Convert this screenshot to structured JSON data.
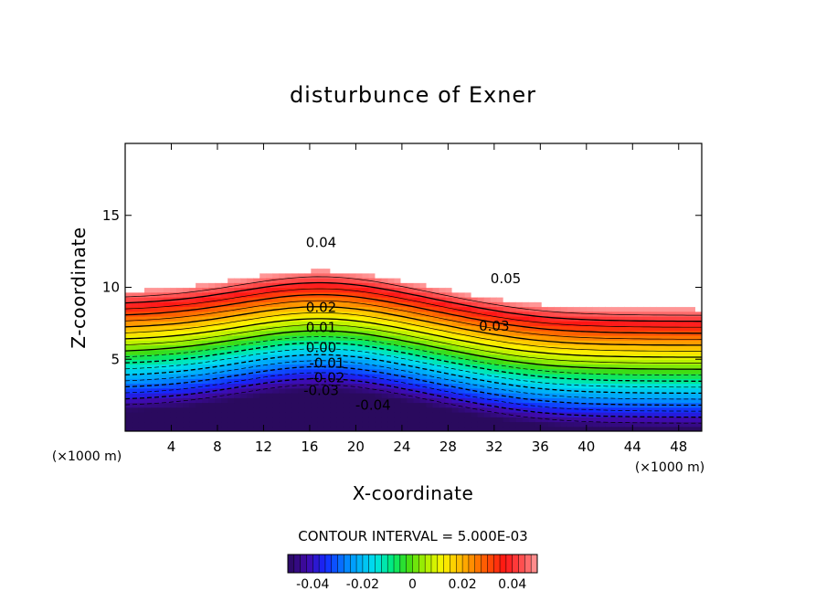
{
  "chart_data": {
    "type": "contour",
    "title": "disturbunce of Exner",
    "xlabel": "X-coordinate",
    "ylabel": "Z-coordinate",
    "x_unit": "(×1000 m)",
    "xlim": [
      0,
      50
    ],
    "ylim": [
      0,
      20
    ],
    "xticks": [
      4,
      8,
      12,
      16,
      20,
      24,
      28,
      32,
      36,
      40,
      44,
      48
    ],
    "yticks": [
      5,
      10,
      15
    ],
    "contour_interval_text": "CONTOUR INTERVAL = 5.000E-03",
    "contour_interval": 0.005,
    "field_range": [
      -0.05,
      0.05
    ],
    "negative_contours": "dashed",
    "contour_labels": [
      {
        "text": "0.04",
        "x": 17,
        "z": 12.8
      },
      {
        "text": "0.05",
        "x": 33,
        "z": 10.3
      },
      {
        "text": "0.02",
        "x": 17,
        "z": 8.3
      },
      {
        "text": "0.03",
        "x": 32,
        "z": 7.0
      },
      {
        "text": "0.01",
        "x": 17,
        "z": 6.9
      },
      {
        "text": "0.00",
        "x": 17,
        "z": 5.5
      },
      {
        "text": "-0.01",
        "x": 17.5,
        "z": 4.4
      },
      {
        "text": "-0.02",
        "x": 17.5,
        "z": 3.4
      },
      {
        "text": "-0.03",
        "x": 17,
        "z": 2.5
      },
      {
        "text": "-0.04",
        "x": 21.5,
        "z": 1.5
      }
    ],
    "colorbar": {
      "ticks": [
        -0.04,
        -0.02,
        0,
        0.02,
        0.04
      ],
      "tick_labels": [
        "-0.04",
        "-0.02",
        "0",
        "0.02",
        "0.04"
      ],
      "colors": [
        "#2a0a5e",
        "#3a0aa0",
        "#1a30ff",
        "#0090ff",
        "#00e0f0",
        "#00f080",
        "#40e000",
        "#a8f000",
        "#f8f800",
        "#ffb000",
        "#ff6000",
        "#ff1010",
        "#ff8080"
      ]
    }
  }
}
